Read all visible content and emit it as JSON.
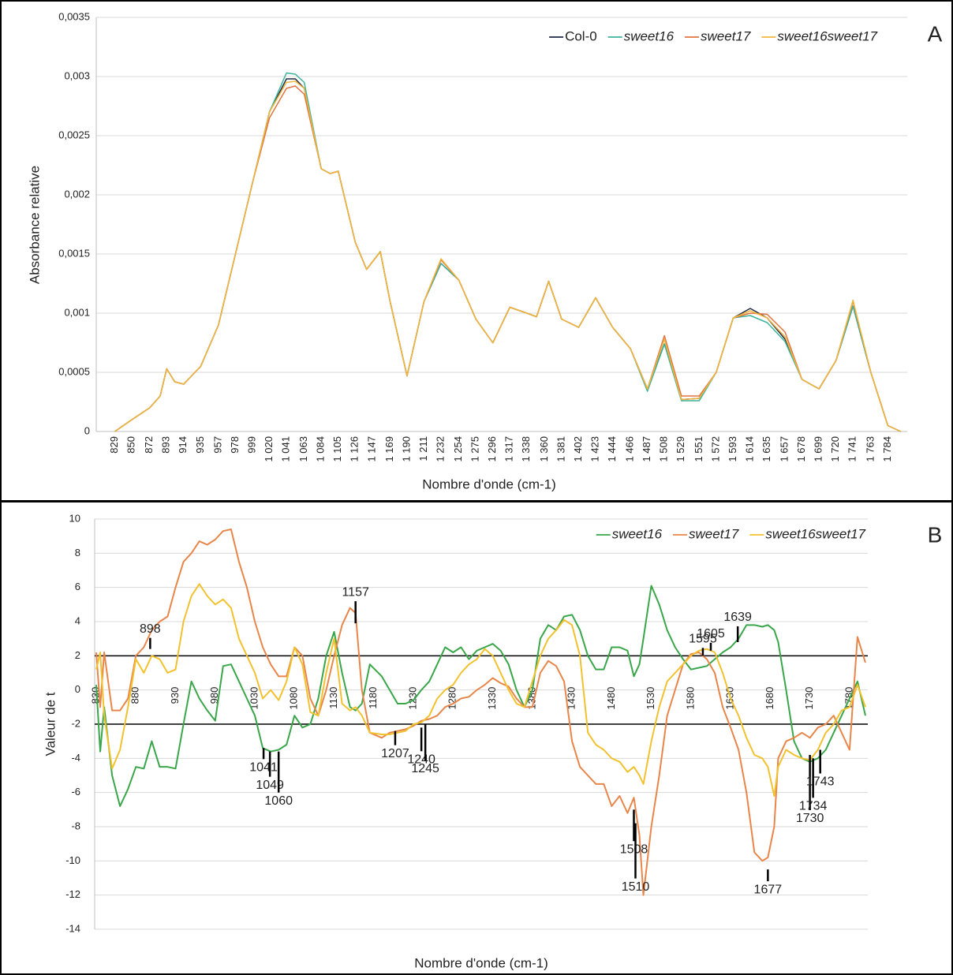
{
  "chart_data": [
    {
      "type": "line",
      "panel_label": "A",
      "x_label": "Nombre d'onde (cm-1)",
      "y_label": "Absorbance relative",
      "xlim": [
        806,
        1808
      ],
      "ylim": [
        0,
        0.0035
      ],
      "grid": true,
      "legend": "top-right",
      "xticks": [
        829,
        850,
        872,
        893,
        914,
        935,
        957,
        978,
        999,
        {
          "value": 1020,
          "label": "1 020"
        },
        {
          "value": 1041,
          "label": "1 041"
        },
        {
          "value": 1063,
          "label": "1 063"
        },
        {
          "value": 1084,
          "label": "1 084"
        },
        {
          "value": 1105,
          "label": "1 105"
        },
        {
          "value": 1126,
          "label": "1 126"
        },
        {
          "value": 1147,
          "label": "1 147"
        },
        {
          "value": 1169,
          "label": "1 169"
        },
        {
          "value": 1190,
          "label": "1 190"
        },
        {
          "value": 1211,
          "label": "1 211"
        },
        {
          "value": 1232,
          "label": "1 232"
        },
        {
          "value": 1254,
          "label": "1 254"
        },
        {
          "value": 1275,
          "label": "1 275"
        },
        {
          "value": 1296,
          "label": "1 296"
        },
        {
          "value": 1317,
          "label": "1 317"
        },
        {
          "value": 1338,
          "label": "1 338"
        },
        {
          "value": 1360,
          "label": "1 360"
        },
        {
          "value": 1381,
          "label": "1 381"
        },
        {
          "value": 1402,
          "label": "1 402"
        },
        {
          "value": 1423,
          "label": "1 423"
        },
        {
          "value": 1444,
          "label": "1 444"
        },
        {
          "value": 1466,
          "label": "1 466"
        },
        {
          "value": 1487,
          "label": "1 487"
        },
        {
          "value": 1508,
          "label": "1 508"
        },
        {
          "value": 1529,
          "label": "1 529"
        },
        {
          "value": 1551,
          "label": "1 551"
        },
        {
          "value": 1572,
          "label": "1 572"
        },
        {
          "value": 1593,
          "label": "1 593"
        },
        {
          "value": 1614,
          "label": "1 614"
        },
        {
          "value": 1635,
          "label": "1 635"
        },
        {
          "value": 1657,
          "label": "1 657"
        },
        {
          "value": 1678,
          "label": "1 678"
        },
        {
          "value": 1699,
          "label": "1 699"
        },
        {
          "value": 1720,
          "label": "1 720"
        },
        {
          "value": 1741,
          "label": "1 741"
        },
        {
          "value": 1763,
          "label": "1 763"
        },
        {
          "value": 1784,
          "label": "1 784"
        }
      ],
      "yticks": [
        0,
        {
          "value": 0.0005,
          "label": "0,0005"
        },
        {
          "value": 0.001,
          "label": "0,001"
        },
        {
          "value": 0.0015,
          "label": "0,0015"
        },
        {
          "value": 0.002,
          "label": "0,002"
        },
        {
          "value": 0.0025,
          "label": "0,0025"
        },
        {
          "value": 0.003,
          "label": "0,003"
        },
        {
          "value": 0.0035,
          "label": "0,0035"
        }
      ],
      "x": [
        829,
        850,
        872,
        885,
        893,
        903,
        914,
        935,
        957,
        978,
        999,
        1020,
        1041,
        1052,
        1063,
        1084,
        1095,
        1105,
        1126,
        1140,
        1157,
        1169,
        1190,
        1211,
        1232,
        1254,
        1275,
        1296,
        1317,
        1338,
        1350,
        1365,
        1381,
        1402,
        1423,
        1444,
        1466,
        1487,
        1508,
        1529,
        1551,
        1572,
        1593,
        1614,
        1635,
        1657,
        1678,
        1699,
        1720,
        1741,
        1763,
        1784,
        1800
      ],
      "series": [
        {
          "name": "Col-0",
          "color": "#1f2a44",
          "values": [
            0,
            0.0001,
            0.0002,
            0.0003,
            0.00053,
            0.00042,
            0.0004,
            0.00055,
            0.0009,
            0.0015,
            0.0021,
            0.0027,
            0.00298,
            0.00298,
            0.0029,
            0.00222,
            0.00218,
            0.0022,
            0.0016,
            0.00137,
            0.00152,
            0.0011,
            0.00047,
            0.0011,
            0.00142,
            0.00128,
            0.00095,
            0.00075,
            0.00105,
            0.001,
            0.00097,
            0.00127,
            0.00095,
            0.00088,
            0.00113,
            0.00088,
            0.0007,
            0.00036,
            0.00074,
            0.00027,
            0.00028,
            0.0005,
            0.00096,
            0.00104,
            0.00096,
            0.00078,
            0.00044,
            0.00036,
            0.0006,
            0.00106,
            0.0005,
            5e-05,
            0
          ]
        },
        {
          "name": "sweet16",
          "color": "#3db39b",
          "values": [
            0,
            0.0001,
            0.0002,
            0.0003,
            0.00053,
            0.00042,
            0.0004,
            0.00055,
            0.0009,
            0.0015,
            0.0021,
            0.0027,
            0.00303,
            0.00302,
            0.00295,
            0.00222,
            0.00218,
            0.0022,
            0.0016,
            0.00137,
            0.00152,
            0.0011,
            0.00047,
            0.0011,
            0.00142,
            0.00128,
            0.00095,
            0.00075,
            0.00105,
            0.001,
            0.00097,
            0.00127,
            0.00095,
            0.00088,
            0.00113,
            0.00088,
            0.0007,
            0.00034,
            0.00074,
            0.00026,
            0.00026,
            0.0005,
            0.00096,
            0.00098,
            0.00092,
            0.00076,
            0.00044,
            0.00036,
            0.0006,
            0.00106,
            0.0005,
            5e-05,
            0
          ]
        },
        {
          "name": "sweet17",
          "color": "#e0733f",
          "values": [
            0,
            0.0001,
            0.0002,
            0.0003,
            0.00053,
            0.00042,
            0.0004,
            0.00055,
            0.0009,
            0.0015,
            0.0021,
            0.00265,
            0.0029,
            0.00292,
            0.00285,
            0.00222,
            0.00218,
            0.0022,
            0.0016,
            0.00137,
            0.00152,
            0.0011,
            0.00047,
            0.0011,
            0.00145,
            0.00128,
            0.00095,
            0.00075,
            0.00105,
            0.001,
            0.00097,
            0.00127,
            0.00095,
            0.00088,
            0.00113,
            0.00088,
            0.0007,
            0.00036,
            0.00081,
            0.0003,
            0.0003,
            0.0005,
            0.00096,
            0.001,
            0.00099,
            0.00084,
            0.00044,
            0.00036,
            0.0006,
            0.0011,
            0.0005,
            5e-05,
            0
          ]
        },
        {
          "name": "sweet16sweet17",
          "color": "#f2b63c",
          "values": [
            0,
            0.0001,
            0.0002,
            0.0003,
            0.00053,
            0.00042,
            0.0004,
            0.00055,
            0.0009,
            0.0015,
            0.0021,
            0.0027,
            0.00295,
            0.00296,
            0.0029,
            0.00222,
            0.00218,
            0.0022,
            0.0016,
            0.00137,
            0.00152,
            0.0011,
            0.00047,
            0.0011,
            0.00146,
            0.00128,
            0.00095,
            0.00075,
            0.00105,
            0.001,
            0.00097,
            0.00127,
            0.00095,
            0.00088,
            0.00113,
            0.00088,
            0.0007,
            0.00036,
            0.00078,
            0.00027,
            0.00028,
            0.0005,
            0.00096,
            0.00102,
            0.00096,
            0.0008,
            0.00044,
            0.00036,
            0.0006,
            0.00111,
            0.0005,
            5e-05,
            0
          ]
        }
      ]
    },
    {
      "type": "line",
      "panel_label": "B",
      "x_label": "Nombre d'onde (cm-1)",
      "y_label": "Valeur de t",
      "xlim": [
        828,
        1803
      ],
      "ylim": [
        -14,
        10
      ],
      "grid": true,
      "legend": "top-right",
      "threshold_lines": [
        2,
        -2
      ],
      "xticks": [
        830,
        880,
        930,
        980,
        1030,
        1080,
        1130,
        1180,
        1230,
        1280,
        1330,
        1380,
        1430,
        1480,
        1530,
        1580,
        1630,
        1680,
        1730,
        1780
      ],
      "yticks": [
        10,
        8,
        6,
        4,
        2,
        0,
        -2,
        -4,
        -6,
        -8,
        -10,
        -12,
        -14
      ],
      "x": [
        830,
        835,
        840,
        850,
        860,
        870,
        880,
        890,
        900,
        910,
        920,
        930,
        940,
        950,
        960,
        970,
        980,
        990,
        1000,
        1010,
        1020,
        1030,
        1040,
        1050,
        1060,
        1070,
        1080,
        1090,
        1100,
        1110,
        1120,
        1130,
        1140,
        1150,
        1157,
        1165,
        1175,
        1190,
        1200,
        1210,
        1220,
        1230,
        1240,
        1250,
        1260,
        1270,
        1280,
        1290,
        1300,
        1310,
        1320,
        1330,
        1340,
        1350,
        1360,
        1370,
        1380,
        1390,
        1400,
        1410,
        1420,
        1430,
        1440,
        1450,
        1460,
        1470,
        1480,
        1490,
        1500,
        1508,
        1515,
        1520,
        1530,
        1540,
        1550,
        1560,
        1570,
        1580,
        1590,
        1600,
        1610,
        1620,
        1630,
        1640,
        1650,
        1660,
        1670,
        1677,
        1685,
        1690,
        1700,
        1710,
        1720,
        1730,
        1740,
        1750,
        1760,
        1770,
        1780,
        1790,
        1800
      ],
      "series": [
        {
          "name": "sweet16",
          "color": "#3aa64a",
          "values": [
            0.3,
            -3.6,
            -1,
            -5,
            -6.8,
            -5.8,
            -4.5,
            -4.6,
            -3,
            -4.5,
            -4.5,
            -4.6,
            -2,
            0.5,
            -0.5,
            -1.2,
            -1.8,
            1.4,
            1.5,
            0.5,
            -0.5,
            -1.5,
            -3.4,
            -3.6,
            -3.5,
            -3.2,
            -1.5,
            -2.2,
            -2,
            -0.5,
            2,
            3.4,
            1,
            -1,
            -1.2,
            -0.8,
            1.5,
            0.8,
            0,
            -0.8,
            -0.8,
            -0.6,
            0,
            0.5,
            1.5,
            2.5,
            2.2,
            2.5,
            1.8,
            2.3,
            2.5,
            2.7,
            2.3,
            1.5,
            0,
            -1,
            0,
            3,
            3.8,
            3.5,
            4.3,
            4.4,
            3.5,
            2,
            1.2,
            1.2,
            2.5,
            2.5,
            2.3,
            0.8,
            1.5,
            3,
            6.1,
            5,
            3.5,
            2.5,
            1.8,
            1.2,
            1.3,
            1.4,
            1.8,
            2.2,
            2.5,
            3,
            3.8,
            3.8,
            3.7,
            3.8,
            3.5,
            2.8,
            0,
            -3,
            -4,
            -4.2,
            -4,
            -3.5,
            -2.5,
            -1.5,
            -0.5,
            0.5,
            -1.5
          ]
        },
        {
          "name": "sweet17",
          "color": "#e8864a",
          "values": [
            2.2,
            -1,
            2.2,
            -1.2,
            -1.2,
            -0.5,
            2,
            2.5,
            3.5,
            4,
            4.3,
            6,
            7.5,
            8,
            8.7,
            8.5,
            8.8,
            9.3,
            9.4,
            7.5,
            6,
            4,
            2.5,
            1.5,
            0.8,
            0.8,
            2.5,
            2,
            -0.5,
            -1.5,
            0,
            2,
            3.8,
            4.8,
            4.5,
            0,
            -2.5,
            -2.8,
            -2.5,
            -2.4,
            -2.3,
            -2.1,
            -1.8,
            -1.7,
            -1.5,
            -1,
            -0.8,
            -0.5,
            -0.4,
            0,
            0.3,
            0.7,
            0.4,
            0.2,
            -0.5,
            -1,
            -1,
            1,
            1.7,
            1.4,
            0.5,
            -3,
            -4.5,
            -5,
            -5.5,
            -5.5,
            -6.8,
            -6.2,
            -7.2,
            -6.3,
            -8.5,
            -12,
            -8,
            -5,
            -1.5,
            0,
            1.5,
            2.1,
            2.2,
            1.8,
            1,
            -1,
            -2.2,
            -3.5,
            -6,
            -9.5,
            -10,
            -9.8,
            -8,
            -4,
            -3,
            -2.8,
            -2.5,
            -2.8,
            -2.2,
            -2,
            -1.5,
            -2.5,
            -3.5,
            3.1,
            1.6
          ]
        },
        {
          "name": "sweet16sweet17",
          "color": "#f2c12e",
          "values": [
            1.2,
            2.2,
            -1.5,
            -4.6,
            -3.5,
            -1,
            1.8,
            1,
            2,
            1.8,
            1,
            1.2,
            4,
            5.5,
            6.2,
            5.5,
            5,
            5.3,
            4.8,
            3,
            2,
            1,
            -0.5,
            0,
            -0.6,
            0.5,
            2.5,
            1.5,
            -1.3,
            -1.5,
            1,
            3,
            -0.8,
            -1.2,
            -1,
            -1.5,
            -2.5,
            -2.6,
            -2.6,
            -2.5,
            -2.4,
            -2,
            -1.9,
            -1.5,
            -0.5,
            0,
            0.3,
            1,
            1.5,
            1.8,
            2.4,
            2,
            1,
            0,
            -0.8,
            -1,
            0.5,
            2,
            3,
            3.5,
            4.1,
            3.8,
            2,
            -2.5,
            -3.2,
            -3.5,
            -4,
            -4.2,
            -4.8,
            -4.5,
            -5,
            -5.5,
            -3,
            -1,
            0.5,
            1,
            1.5,
            2,
            2.3,
            2.4,
            2.2,
            1,
            -0.5,
            -1.5,
            -2.8,
            -3.8,
            -4,
            -4.5,
            -6.2,
            -4.5,
            -3.5,
            -3.8,
            -4,
            -4.1,
            -3.5,
            -2.5,
            -2,
            -1.2,
            -1,
            0.3,
            -1
          ]
        }
      ],
      "annotations": [
        {
          "x": 898,
          "y": 2.4
        },
        {
          "x": 1157,
          "y": 3.9
        },
        {
          "x": 1041,
          "y": -3.4
        },
        {
          "x": 1049,
          "y": -3.6
        },
        {
          "x": 1060,
          "y": -3.6
        },
        {
          "x": 1207,
          "y": -2.4
        },
        {
          "x": 1240,
          "y": -2.2
        },
        {
          "x": 1245,
          "y": -2
        },
        {
          "x": 1508,
          "y": -7
        },
        {
          "x": 1510,
          "y": -7.8
        },
        {
          "x": 1595,
          "y": 2
        },
        {
          "x": 1605,
          "y": 2.3
        },
        {
          "x": 1639,
          "y": 2.8
        },
        {
          "x": 1677,
          "y": -10.5
        },
        {
          "x": 1730,
          "y": -3.8
        },
        {
          "x": 1734,
          "y": -4
        },
        {
          "x": 1743,
          "y": -3.5
        }
      ]
    }
  ]
}
